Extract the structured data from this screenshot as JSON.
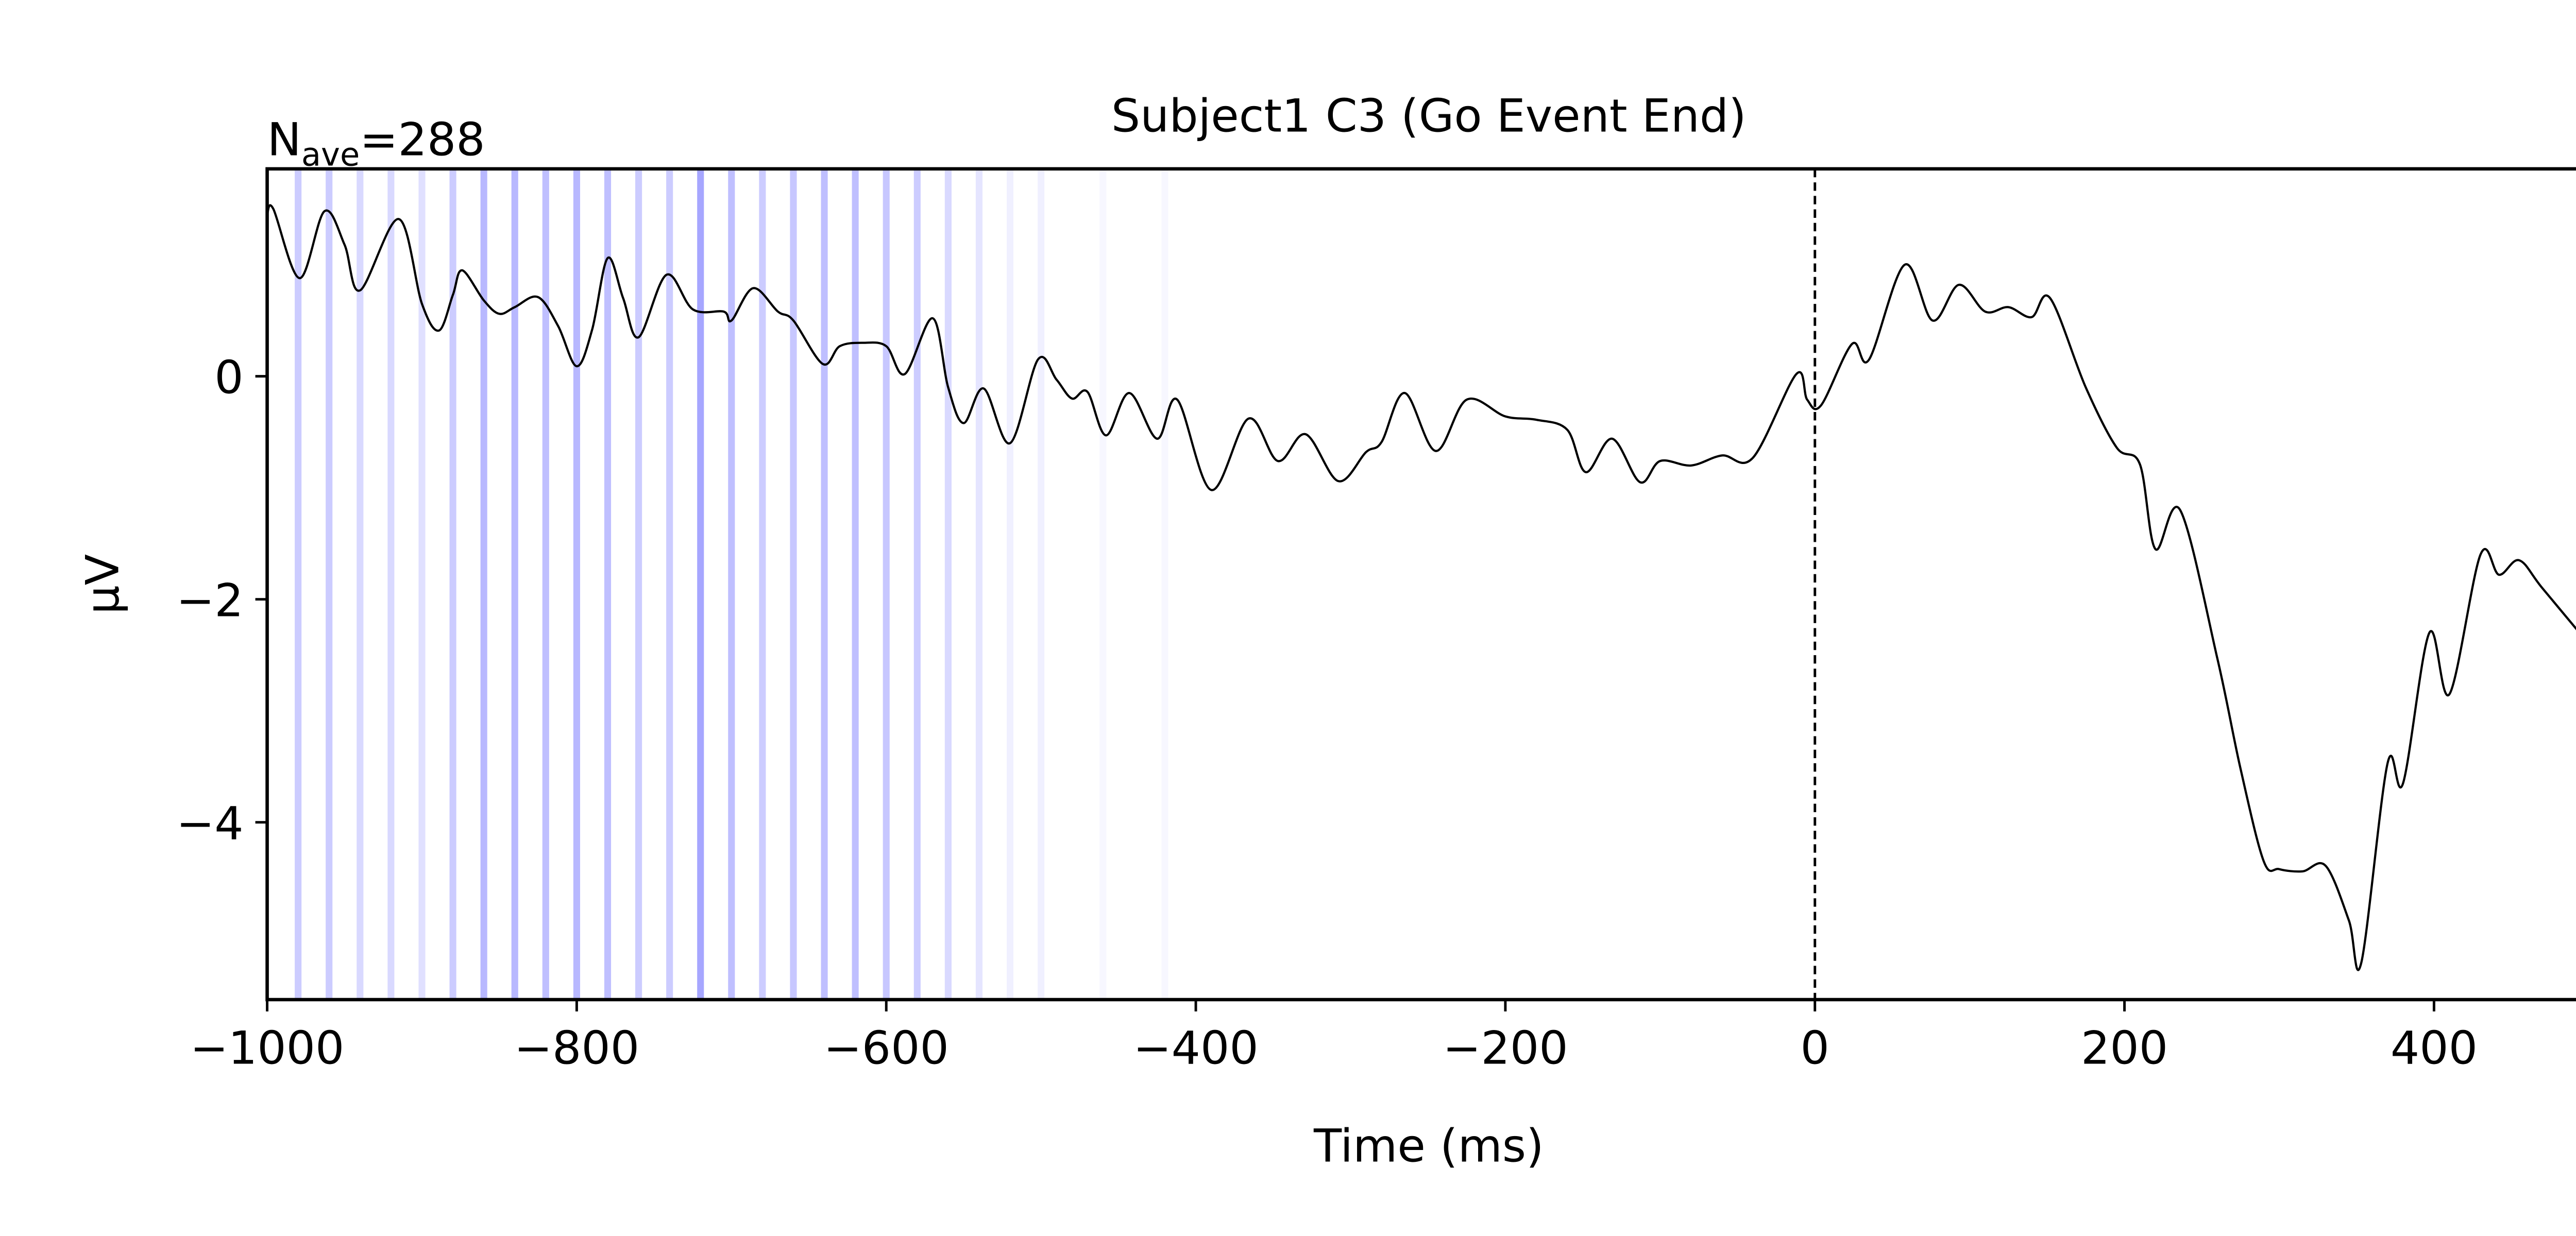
{
  "chart_data": {
    "type": "line",
    "title": "Subject1 C3 (Go Event End)",
    "annotation": {
      "base": "N",
      "subscript": "ave",
      "text": "=288"
    },
    "xlabel": "Time (ms)",
    "ylabel": "µV",
    "xlim": [
      -1000,
      500
    ],
    "ylim": [
      -5.59,
      1.86
    ],
    "xticks": [
      {
        "value": -1000,
        "label": "−1000"
      },
      {
        "value": -800,
        "label": "−800"
      },
      {
        "value": -600,
        "label": "−600"
      },
      {
        "value": -400,
        "label": "−400"
      },
      {
        "value": -200,
        "label": "−200"
      },
      0,
      200,
      400
    ],
    "yticks": [
      0,
      {
        "value": -2,
        "label": "−2"
      },
      {
        "value": -4,
        "label": "−4"
      }
    ],
    "vline": 0,
    "highlights": {
      "color": "#0000ff",
      "x": [
        -980,
        -960,
        -940,
        -920,
        -900,
        -880,
        -860,
        -840,
        -820,
        -800,
        -780,
        -760,
        -740,
        -720,
        -700,
        -680,
        -660,
        -640,
        -620,
        -600,
        -580,
        -560,
        -540,
        -520,
        -500,
        -460,
        -420
      ],
      "alpha": [
        0.2,
        0.2,
        0.15,
        0.15,
        0.12,
        0.2,
        0.28,
        0.28,
        0.25,
        0.28,
        0.25,
        0.2,
        0.2,
        0.35,
        0.25,
        0.2,
        0.22,
        0.25,
        0.25,
        0.22,
        0.2,
        0.15,
        0.1,
        0.06,
        0.06,
        0.03,
        0.03
      ]
    },
    "series": [
      {
        "name": "C3",
        "color": "#000000",
        "x": [
          -1000,
          -996,
          -979,
          -963,
          -950,
          -940,
          -915,
          -900,
          -889,
          -880,
          -874,
          -860,
          -850,
          -840,
          -825,
          -812,
          -800,
          -790,
          -780,
          -770,
          -760,
          -742,
          -725,
          -705,
          -700,
          -686,
          -670,
          -660,
          -641,
          -630,
          -615,
          -600,
          -588,
          -570,
          -560,
          -550,
          -537,
          -520,
          -502,
          -490,
          -480,
          -470,
          -458,
          -443,
          -425,
          -412,
          -390,
          -366,
          -347,
          -329,
          -308,
          -290,
          -280,
          -265,
          -245,
          -225,
          -200,
          -180,
          -160,
          -148,
          -131,
          -113,
          -100,
          -80,
          -60,
          -40,
          -12,
          -5,
          4,
          24,
          35,
          58,
          76,
          93,
          110,
          125,
          140,
          152,
          175,
          195,
          210,
          220,
          236,
          260,
          275,
          290,
          300,
          315,
          330,
          345,
          353,
          370,
          380,
          397,
          410,
          430,
          442,
          455,
          470,
          500
        ],
        "values": [
          1.45,
          1.5,
          0.88,
          1.48,
          1.18,
          0.77,
          1.41,
          0.65,
          0.41,
          0.73,
          0.95,
          0.68,
          0.56,
          0.62,
          0.71,
          0.45,
          0.09,
          0.42,
          1.06,
          0.7,
          0.35,
          0.91,
          0.6,
          0.58,
          0.5,
          0.79,
          0.58,
          0.5,
          0.11,
          0.27,
          0.3,
          0.27,
          0.02,
          0.52,
          -0.1,
          -0.42,
          -0.11,
          -0.6,
          0.15,
          -0.03,
          -0.2,
          -0.14,
          -0.53,
          -0.15,
          -0.56,
          -0.21,
          -1.02,
          -0.38,
          -0.76,
          -0.52,
          -0.94,
          -0.68,
          -0.59,
          -0.15,
          -0.67,
          -0.21,
          -0.36,
          -0.39,
          -0.48,
          -0.86,
          -0.56,
          -0.95,
          -0.76,
          -0.8,
          -0.71,
          -0.73,
          0.02,
          -0.21,
          -0.26,
          0.29,
          0.15,
          1.0,
          0.5,
          0.82,
          0.58,
          0.62,
          0.53,
          0.7,
          -0.1,
          -0.64,
          -0.79,
          -1.55,
          -1.2,
          -2.53,
          -3.52,
          -4.35,
          -4.42,
          -4.44,
          -4.39,
          -4.88,
          -5.26,
          -3.47,
          -3.65,
          -2.3,
          -2.85,
          -1.6,
          -1.78,
          -1.65,
          -1.9,
          -2.4
        ]
      }
    ]
  }
}
